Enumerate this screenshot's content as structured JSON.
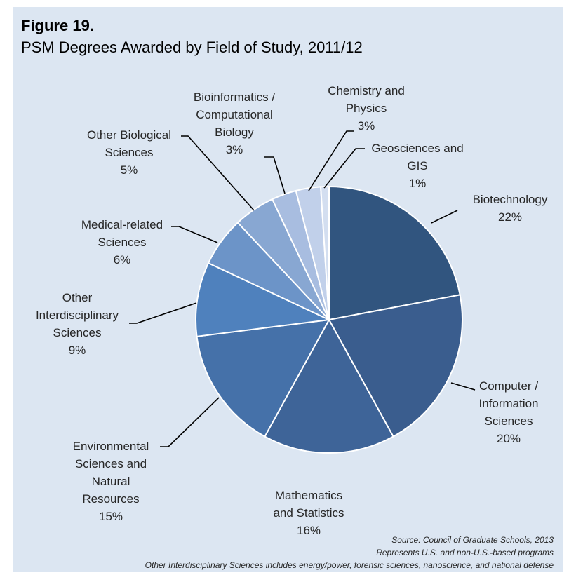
{
  "figure": {
    "label": "Figure 19.",
    "title": "PSM Degrees Awarded by Field of Study, 2011/12"
  },
  "notes": {
    "source": "Source: Council of Graduate Schools, 2013",
    "represents": "Represents U.S. and non-U.S.-based programs",
    "footnote": "Other Interdisciplinary Sciences includes energy/power, forensic sciences, nanoscience, and national defense"
  },
  "chart_data": {
    "type": "pie",
    "start_angle": "top (12 o'clock), clockwise",
    "slices": [
      {
        "label": [
          "Biotechnology"
        ],
        "value": 22,
        "color": "#31557f"
      },
      {
        "label": [
          "Computer /",
          "Information",
          "Sciences"
        ],
        "value": 20,
        "color": "#3a5d8e"
      },
      {
        "label": [
          "Mathematics",
          "and Statistics"
        ],
        "value": 16,
        "color": "#3e6498"
      },
      {
        "label": [
          "Environmental",
          "Sciences and",
          "Natural",
          "Resources"
        ],
        "value": 15,
        "color": "#4571a9"
      },
      {
        "label": [
          "Other",
          "Interdisciplinary",
          "Sciences"
        ],
        "value": 9,
        "color": "#4f81bd"
      },
      {
        "label": [
          "Medical-related",
          "Sciences"
        ],
        "value": 6,
        "color": "#6c94c8"
      },
      {
        "label": [
          "Other Biological",
          "Sciences"
        ],
        "value": 5,
        "color": "#88a7d2"
      },
      {
        "label": [
          "Bioinformatics /",
          "Computational",
          "Biology"
        ],
        "value": 3,
        "color": "#a8bde0"
      },
      {
        "label": [
          "Chemistry and",
          "Physics"
        ],
        "value": 3,
        "color": "#c1d0ea"
      },
      {
        "label": [
          "Geosciences and",
          "GIS"
        ],
        "value": 1,
        "color": "#d3def0"
      }
    ]
  }
}
